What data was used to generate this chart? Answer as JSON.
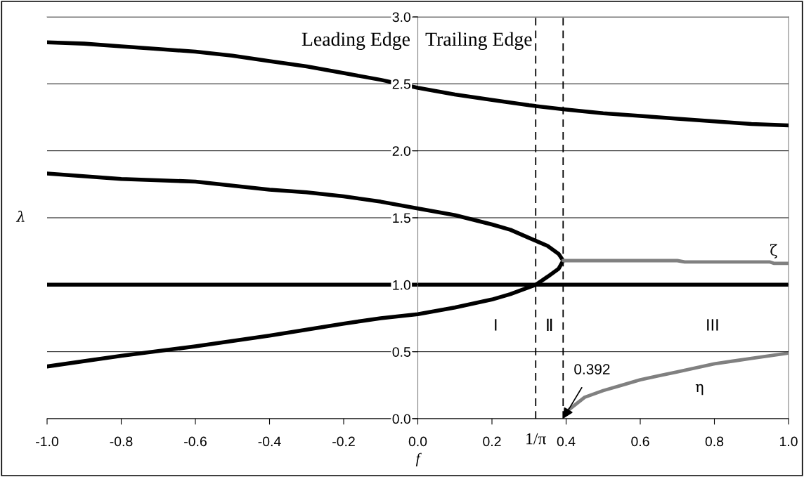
{
  "chart_data": {
    "type": "line",
    "xlabel": "f",
    "ylabel": "λ",
    "xlim": [
      -1.0,
      1.0
    ],
    "ylim": [
      0.0,
      3.0
    ],
    "xticks": [
      {
        "value": -1.0,
        "label": "-1.0"
      },
      {
        "value": -0.8,
        "label": "-0.8"
      },
      {
        "value": -0.6,
        "label": "-0.6"
      },
      {
        "value": -0.4,
        "label": "-0.4"
      },
      {
        "value": -0.2,
        "label": "-0.2"
      },
      {
        "value": 0.0,
        "label": "0.0"
      },
      {
        "value": 0.2,
        "label": "0.2"
      },
      {
        "value": 0.4,
        "label": "0.4"
      },
      {
        "value": 0.6,
        "label": "0.6"
      },
      {
        "value": 0.8,
        "label": "0.8"
      },
      {
        "value": 1.0,
        "label": "1.0"
      }
    ],
    "yticks": [
      {
        "value": 0.0,
        "label": "0.0"
      },
      {
        "value": 0.5,
        "label": "0.5"
      },
      {
        "value": 1.0,
        "label": "1.0"
      },
      {
        "value": 1.5,
        "label": "1.5"
      },
      {
        "value": 2.0,
        "label": "2.0"
      },
      {
        "value": 2.5,
        "label": "2.5"
      },
      {
        "value": 3.0,
        "label": "3.0"
      }
    ],
    "grid": "y",
    "legend": false,
    "marker": "none",
    "line_style": "solid",
    "series": [
      {
        "color": "#000000",
        "x": [
          -1.0,
          -0.9,
          -0.8,
          -0.7,
          -0.6,
          -0.5,
          -0.4,
          -0.3,
          -0.2,
          -0.1,
          0.0,
          0.1,
          0.2,
          0.3,
          0.392,
          0.5,
          0.6,
          0.7,
          0.8,
          0.9,
          1.0
        ],
        "values": [
          2.81,
          2.8,
          2.78,
          2.76,
          2.74,
          2.71,
          2.67,
          2.63,
          2.58,
          2.53,
          2.47,
          2.42,
          2.38,
          2.34,
          2.31,
          2.28,
          2.26,
          2.24,
          2.22,
          2.2,
          2.19
        ]
      },
      {
        "color": "#000000",
        "x": [
          -1.0,
          -0.8,
          -0.6,
          -0.4,
          -0.3,
          -0.2,
          -0.1,
          0.0,
          0.1,
          0.2,
          0.25,
          0.3,
          0.35,
          0.38,
          0.392,
          0.38,
          0.35,
          0.318,
          0.25,
          0.2,
          0.1,
          0.0,
          -0.1,
          -0.2,
          -0.4,
          -0.6,
          -0.8,
          -1.0
        ],
        "values": [
          1.83,
          1.79,
          1.77,
          1.71,
          1.69,
          1.66,
          1.62,
          1.57,
          1.52,
          1.45,
          1.41,
          1.35,
          1.29,
          1.23,
          1.18,
          1.12,
          1.06,
          1.0,
          0.93,
          0.89,
          0.83,
          0.78,
          0.75,
          0.71,
          0.62,
          0.54,
          0.47,
          0.39
        ]
      },
      {
        "name": "ζ",
        "color": "#808080",
        "x": [
          0.392,
          0.7,
          0.72,
          0.95,
          0.96,
          1.0
        ],
        "values": [
          1.18,
          1.18,
          1.17,
          1.17,
          1.16,
          1.16
        ]
      },
      {
        "name": "η",
        "color": "#808080",
        "x": [
          0.4,
          0.45,
          0.5,
          0.55,
          0.6,
          0.65,
          0.7,
          0.75,
          0.8,
          0.85,
          0.9,
          0.95,
          1.0
        ],
        "values": [
          0.05,
          0.16,
          0.21,
          0.25,
          0.29,
          0.32,
          0.35,
          0.38,
          0.41,
          0.43,
          0.45,
          0.47,
          0.49
        ]
      }
    ],
    "ref_lines": [
      {
        "axis": "y",
        "value": 1.0,
        "color": "#000000",
        "line_style": "solid"
      },
      {
        "axis": "x",
        "value": 0.318,
        "label": "1/π",
        "color": "#000000",
        "line_style": "dashed"
      },
      {
        "axis": "x",
        "value": 0.392,
        "color": "#000000",
        "line_style": "dashed"
      }
    ],
    "annotations": [
      "Leading Edge",
      "Trailing Edge",
      "I",
      "Ⅱ",
      "III",
      {
        "text": "0.392",
        "x": 0.392,
        "y": 0.0
      }
    ]
  }
}
